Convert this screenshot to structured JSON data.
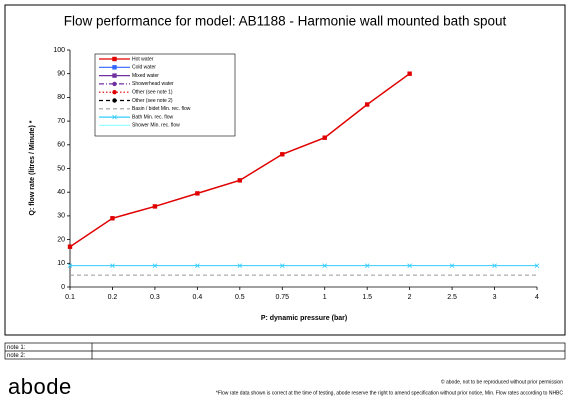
{
  "chart_data": {
    "type": "line",
    "title": "Flow performance for model: AB1188 - Harmonie wall mounted bath spout",
    "x_label": "P: dynamic pressure (bar)",
    "y_label": "Q: flow rate (litres  / Minute) *",
    "categories": [
      "0.1",
      "0.2",
      "0.3",
      "0.4",
      "0.5",
      "0.75",
      "1",
      "1.5",
      "2",
      "2.5",
      "3",
      "4"
    ],
    "ylim": [
      0,
      100
    ],
    "yticks": [
      0,
      10,
      20,
      30,
      40,
      50,
      60,
      70,
      80,
      90,
      100
    ],
    "legend": "upper left",
    "series": [
      {
        "name": "Hot water",
        "color": "#e00000",
        "style": "solid",
        "marker": "square",
        "values": [
          17,
          29,
          34,
          39.5,
          45,
          56,
          63,
          77,
          90,
          null,
          null,
          null
        ]
      },
      {
        "name": "Cold water",
        "color": "#3366ff",
        "style": "solid",
        "marker": "square",
        "values": [
          null,
          null,
          null,
          null,
          null,
          null,
          null,
          null,
          null,
          null,
          null,
          null
        ]
      },
      {
        "name": "Mixed water",
        "color": "#7030a0",
        "style": "solid",
        "marker": "square",
        "values": [
          null,
          null,
          null,
          null,
          null,
          null,
          null,
          null,
          null,
          null,
          null,
          null
        ]
      },
      {
        "name": "Showerhead water",
        "color": "#7030a0",
        "style": "dashdot",
        "marker": "circle",
        "values": [
          null,
          null,
          null,
          null,
          null,
          null,
          null,
          null,
          null,
          null,
          null,
          null
        ]
      },
      {
        "name": "Other (see note 1)",
        "color": "#e00000",
        "style": "dotted",
        "marker": "circle",
        "values": [
          null,
          null,
          null,
          null,
          null,
          null,
          null,
          null,
          null,
          null,
          null,
          null
        ]
      },
      {
        "name": "Other (see note 2)",
        "color": "#000000",
        "style": "dashed",
        "marker": "circle",
        "values": [
          null,
          null,
          null,
          null,
          null,
          null,
          null,
          null,
          null,
          null,
          null,
          null
        ]
      },
      {
        "name": "Basin / bidet Min. rec. flow",
        "color": "#999999",
        "style": "dashed",
        "marker": "none",
        "values": [
          5,
          5,
          5,
          5,
          5,
          5,
          5,
          5,
          5,
          5,
          5,
          5
        ]
      },
      {
        "name": "Bath Min. rec. flow",
        "color": "#33ccff",
        "style": "solid",
        "marker": "cross",
        "values": [
          9,
          9,
          9,
          9,
          9,
          9,
          9,
          9,
          9,
          9,
          9,
          9
        ]
      },
      {
        "name": "Shower Min. rec. flow",
        "color": "#99ffff",
        "style": "solid",
        "marker": "none",
        "values": [
          null,
          null,
          null,
          null,
          null,
          null,
          null,
          null,
          null,
          null,
          null,
          null
        ]
      }
    ]
  },
  "notes": [
    {
      "label": "note 1:"
    },
    {
      "label": "note 2:"
    }
  ],
  "footer": {
    "logo": "abode",
    "copyright": "© abode, not to be reproduced without prior permission",
    "disclaimer": "*Flow rate data shown is correct at the time of testing, abode reserve the right to amend specification without prior notice, Min. Flow rates according to NHBC"
  }
}
